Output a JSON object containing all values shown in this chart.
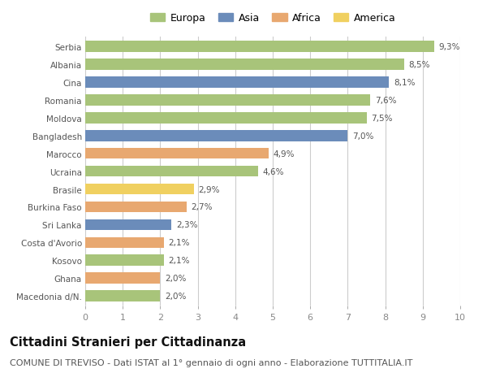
{
  "countries": [
    "Serbia",
    "Albania",
    "Cina",
    "Romania",
    "Moldova",
    "Bangladesh",
    "Marocco",
    "Ucraina",
    "Brasile",
    "Burkina Faso",
    "Sri Lanka",
    "Costa d'Avorio",
    "Kosovo",
    "Ghana",
    "Macedonia d/N."
  ],
  "values": [
    9.3,
    8.5,
    8.1,
    7.6,
    7.5,
    7.0,
    4.9,
    4.6,
    2.9,
    2.7,
    2.3,
    2.1,
    2.1,
    2.0,
    2.0
  ],
  "labels": [
    "9,3%",
    "8,5%",
    "8,1%",
    "7,6%",
    "7,5%",
    "7,0%",
    "4,9%",
    "4,6%",
    "2,9%",
    "2,7%",
    "2,3%",
    "2,1%",
    "2,1%",
    "2,0%",
    "2,0%"
  ],
  "continents": [
    "Europa",
    "Europa",
    "Asia",
    "Europa",
    "Europa",
    "Asia",
    "Africa",
    "Europa",
    "America",
    "Africa",
    "Asia",
    "Africa",
    "Europa",
    "Africa",
    "Europa"
  ],
  "continent_colors": {
    "Europa": "#a8c47a",
    "Asia": "#6b8cba",
    "Africa": "#e8a870",
    "America": "#f0d060"
  },
  "legend_order": [
    "Europa",
    "Asia",
    "Africa",
    "America"
  ],
  "bg_color": "#ffffff",
  "bar_height": 0.62,
  "xlim": [
    0,
    10
  ],
  "xticks": [
    0,
    1,
    2,
    3,
    4,
    5,
    6,
    7,
    8,
    9,
    10
  ],
  "title": "Cittadini Stranieri per Cittadinanza",
  "subtitle": "COMUNE DI TREVISO - Dati ISTAT al 1° gennaio di ogni anno - Elaborazione TUTTITALIA.IT",
  "title_fontsize": 10.5,
  "subtitle_fontsize": 8,
  "label_fontsize": 7.5,
  "tick_fontsize": 8,
  "legend_fontsize": 9
}
